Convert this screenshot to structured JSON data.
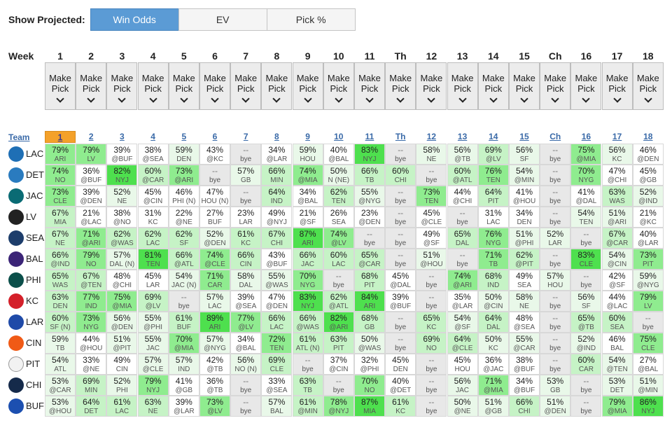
{
  "toolbar": {
    "label": "Show Projected:",
    "buttons": [
      {
        "label": "Win Odds",
        "active": true
      },
      {
        "label": "EV",
        "active": false
      },
      {
        "label": "Pick %",
        "active": false
      }
    ]
  },
  "week_label": "Week",
  "weeks": [
    "1",
    "2",
    "3",
    "4",
    "5",
    "6",
    "7",
    "8",
    "9",
    "10",
    "11",
    "Th",
    "12",
    "13",
    "14",
    "15",
    "Ch",
    "16",
    "17",
    "18"
  ],
  "make_pick": {
    "line1": "Make",
    "line2": "Pick"
  },
  "team_header": "Team",
  "selected_week_index": 0,
  "teams": [
    {
      "abbr": "LAC",
      "logo": "bolt-logo-icon",
      "color": "#1f6fb5",
      "cells": [
        [
          "79%",
          "ARI"
        ],
        [
          "79%",
          "LV"
        ],
        [
          "39%",
          "@BUF"
        ],
        [
          "38%",
          "@SEA"
        ],
        [
          "59%",
          "DEN"
        ],
        [
          "43%",
          "@KC"
        ],
        [
          "--",
          "bye"
        ],
        [
          "34%",
          "@LAR"
        ],
        [
          "59%",
          "HOU"
        ],
        [
          "40%",
          "@BAL"
        ],
        [
          "83%",
          "NYJ"
        ],
        [
          "--",
          "bye"
        ],
        [
          "58%",
          "NE"
        ],
        [
          "56%",
          "@TB"
        ],
        [
          "69%",
          "@LV"
        ],
        [
          "56%",
          "SF"
        ],
        [
          "--",
          "bye"
        ],
        [
          "75%",
          "@MIA"
        ],
        [
          "56%",
          "KC"
        ],
        [
          "46%",
          "@DEN"
        ]
      ]
    },
    {
      "abbr": "DET",
      "logo": "lion-logo-icon",
      "color": "#2a7bbf",
      "cells": [
        [
          "74%",
          "NO"
        ],
        [
          "36%",
          "@BUF"
        ],
        [
          "82%",
          "NYJ"
        ],
        [
          "60%",
          "@CAR"
        ],
        [
          "73%",
          "@ARI"
        ],
        [
          "--",
          "bye"
        ],
        [
          "57%",
          "GB"
        ],
        [
          "66%",
          "MIN"
        ],
        [
          "74%",
          "@MIA"
        ],
        [
          "50%",
          "N (NE)"
        ],
        [
          "66%",
          "TB"
        ],
        [
          "60%",
          "CHI"
        ],
        [
          "--",
          "bye"
        ],
        [
          "60%",
          "@ATL"
        ],
        [
          "76%",
          "TEN"
        ],
        [
          "54%",
          "@MIN"
        ],
        [
          "--",
          "bye"
        ],
        [
          "70%",
          "NYG"
        ],
        [
          "47%",
          "@CHI"
        ],
        [
          "45%",
          "@GB"
        ]
      ]
    },
    {
      "abbr": "JAC",
      "logo": "jaguar-logo-icon",
      "color": "#0a6b74",
      "cells": [
        [
          "73%",
          "CLE"
        ],
        [
          "39%",
          "@DEN"
        ],
        [
          "52%",
          "NE"
        ],
        [
          "45%",
          "@CIN"
        ],
        [
          "46%",
          "PHI (N)"
        ],
        [
          "47%",
          "HOU (N)"
        ],
        [
          "--",
          "bye"
        ],
        [
          "64%",
          "IND"
        ],
        [
          "34%",
          "@BAL"
        ],
        [
          "62%",
          "TEN"
        ],
        [
          "55%",
          "@NYG"
        ],
        [
          "--",
          "bye"
        ],
        [
          "73%",
          "TEN"
        ],
        [
          "44%",
          "@CHI"
        ],
        [
          "64%",
          "PIT"
        ],
        [
          "41%",
          "@HOU"
        ],
        [
          "--",
          "bye"
        ],
        [
          "41%",
          "@DAL"
        ],
        [
          "63%",
          "WAS"
        ],
        [
          "52%",
          "@IND"
        ]
      ]
    },
    {
      "abbr": "LV",
      "logo": "shield-logo-icon",
      "color": "#222222",
      "cells": [
        [
          "67%",
          "MIA"
        ],
        [
          "21%",
          "@LAC"
        ],
        [
          "38%",
          "@NO"
        ],
        [
          "31%",
          "KC"
        ],
        [
          "22%",
          "@NE"
        ],
        [
          "27%",
          "BUF"
        ],
        [
          "23%",
          "LAR"
        ],
        [
          "49%",
          "@NYJ"
        ],
        [
          "21%",
          "@SF"
        ],
        [
          "26%",
          "SEA"
        ],
        [
          "23%",
          "@DEN"
        ],
        [
          "--",
          "bye"
        ],
        [
          "45%",
          "@CLE"
        ],
        [
          "--",
          "bye"
        ],
        [
          "31%",
          "LAC"
        ],
        [
          "34%",
          "DEN"
        ],
        [
          "--",
          "bye"
        ],
        [
          "54%",
          "TEN"
        ],
        [
          "51%",
          "@ARI"
        ],
        [
          "21%",
          "@KC"
        ]
      ]
    },
    {
      "abbr": "SEA",
      "logo": "hawk-logo-icon",
      "color": "#1d3d6b",
      "cells": [
        [
          "67%",
          "NE"
        ],
        [
          "71%",
          "@ARI"
        ],
        [
          "62%",
          "@WAS"
        ],
        [
          "62%",
          "LAC"
        ],
        [
          "62%",
          "SF"
        ],
        [
          "52%",
          "@DEN"
        ],
        [
          "61%",
          "KC"
        ],
        [
          "67%",
          "CHI"
        ],
        [
          "87%",
          "ARI"
        ],
        [
          "74%",
          "@LV"
        ],
        [
          "--",
          "bye"
        ],
        [
          "--",
          "bye"
        ],
        [
          "49%",
          "@SF"
        ],
        [
          "65%",
          "DAL"
        ],
        [
          "76%",
          "NYG"
        ],
        [
          "51%",
          "@PHI"
        ],
        [
          "52%",
          "LAR"
        ],
        [
          "--",
          "bye"
        ],
        [
          "67%",
          "@CAR"
        ],
        [
          "40%",
          "@LAR"
        ]
      ]
    },
    {
      "abbr": "BAL",
      "logo": "raven-logo-icon",
      "color": "#3b2477",
      "cells": [
        [
          "66%",
          "@IND"
        ],
        [
          "79%",
          "NO"
        ],
        [
          "57%",
          "DAL (N)"
        ],
        [
          "81%",
          "TEN"
        ],
        [
          "66%",
          "@ATL"
        ],
        [
          "74%",
          "@CLE"
        ],
        [
          "66%",
          "CIN"
        ],
        [
          "43%",
          "@BUF"
        ],
        [
          "66%",
          "JAC"
        ],
        [
          "60%",
          "LAC"
        ],
        [
          "65%",
          "@CAR"
        ],
        [
          "--",
          "bye"
        ],
        [
          "51%",
          "@HOU"
        ],
        [
          "--",
          "bye"
        ],
        [
          "71%",
          "TB"
        ],
        [
          "62%",
          "@PIT"
        ],
        [
          "--",
          "bye"
        ],
        [
          "83%",
          "CLE"
        ],
        [
          "54%",
          "@CIN"
        ],
        [
          "73%",
          "PIT"
        ]
      ]
    },
    {
      "abbr": "PHI",
      "logo": "eagle-logo-icon",
      "color": "#0b4f4a",
      "cells": [
        [
          "65%",
          "WAS"
        ],
        [
          "67%",
          "@TEN"
        ],
        [
          "48%",
          "@CHI"
        ],
        [
          "45%",
          "LAR"
        ],
        [
          "54%",
          "JAC (N)"
        ],
        [
          "71%",
          "CAR"
        ],
        [
          "58%",
          "DAL"
        ],
        [
          "55%",
          "@WAS"
        ],
        [
          "70%",
          "NYG"
        ],
        [
          "--",
          "bye"
        ],
        [
          "68%",
          "PIT"
        ],
        [
          "45%",
          "@DAL"
        ],
        [
          "--",
          "bye"
        ],
        [
          "74%",
          "@ARI"
        ],
        [
          "68%",
          "IND"
        ],
        [
          "49%",
          "SEA"
        ],
        [
          "57%",
          "HOU"
        ],
        [
          "--",
          "bye"
        ],
        [
          "42%",
          "@SF"
        ],
        [
          "59%",
          "@NYG"
        ]
      ]
    },
    {
      "abbr": "KC",
      "logo": "arrowhead-logo-icon",
      "color": "#d4202a",
      "cells": [
        [
          "63%",
          "DEN"
        ],
        [
          "77%",
          "IND"
        ],
        [
          "75%",
          "@MIA"
        ],
        [
          "69%",
          "@LV"
        ],
        [
          "--",
          "bye"
        ],
        [
          "57%",
          "LAC"
        ],
        [
          "39%",
          "@SEA"
        ],
        [
          "47%",
          "@DEN"
        ],
        [
          "83%",
          "NYJ"
        ],
        [
          "62%",
          "@ATL"
        ],
        [
          "84%",
          "ARI"
        ],
        [
          "39%",
          "@BUF"
        ],
        [
          "--",
          "bye"
        ],
        [
          "35%",
          "@LAR"
        ],
        [
          "50%",
          "@CIN"
        ],
        [
          "58%",
          "NE"
        ],
        [
          "--",
          "bye"
        ],
        [
          "56%",
          "SF"
        ],
        [
          "44%",
          "@LAC"
        ],
        [
          "79%",
          "LV"
        ]
      ]
    },
    {
      "abbr": "LAR",
      "logo": "ram-logo-icon",
      "color": "#1f4aa8",
      "cells": [
        [
          "60%",
          "SF (N)"
        ],
        [
          "73%",
          "NYG"
        ],
        [
          "56%",
          "@DEN"
        ],
        [
          "55%",
          "@PHI"
        ],
        [
          "61%",
          "BUF"
        ],
        [
          "89%",
          "ARI"
        ],
        [
          "77%",
          "@LV"
        ],
        [
          "66%",
          "LAC"
        ],
        [
          "66%",
          "@WAS"
        ],
        [
          "82%",
          "@ARI"
        ],
        [
          "68%",
          "GB"
        ],
        [
          "--",
          "bye"
        ],
        [
          "65%",
          "KC"
        ],
        [
          "54%",
          "@SF"
        ],
        [
          "64%",
          "DAL"
        ],
        [
          "48%",
          "@SEA"
        ],
        [
          "--",
          "bye"
        ],
        [
          "65%",
          "@TB"
        ],
        [
          "60%",
          "SEA"
        ],
        [
          "--",
          "bye"
        ]
      ]
    },
    {
      "abbr": "CIN",
      "logo": "tiger-logo-icon",
      "color": "#f05a16",
      "cells": [
        [
          "59%",
          "TB"
        ],
        [
          "44%",
          "@HOU"
        ],
        [
          "51%",
          "@PIT"
        ],
        [
          "55%",
          "JAC"
        ],
        [
          "70%",
          "@MIA"
        ],
        [
          "57%",
          "@NYG"
        ],
        [
          "34%",
          "@BAL"
        ],
        [
          "72%",
          "TEN"
        ],
        [
          "61%",
          "ATL (N)"
        ],
        [
          "63%",
          "PIT"
        ],
        [
          "50%",
          "@WAS"
        ],
        [
          "--",
          "bye"
        ],
        [
          "69%",
          "NO"
        ],
        [
          "64%",
          "@CLE"
        ],
        [
          "50%",
          "KC"
        ],
        [
          "55%",
          "@CAR"
        ],
        [
          "--",
          "bye"
        ],
        [
          "52%",
          "@IND"
        ],
        [
          "46%",
          "BAL"
        ],
        [
          "75%",
          "CLE"
        ]
      ]
    },
    {
      "abbr": "PIT",
      "logo": "steel-logo-icon",
      "color": "#f2f2f2",
      "cells": [
        [
          "54%",
          "ATL"
        ],
        [
          "33%",
          "@NE"
        ],
        [
          "49%",
          "CIN"
        ],
        [
          "57%",
          "@CLE"
        ],
        [
          "57%",
          "IND"
        ],
        [
          "42%",
          "@TB"
        ],
        [
          "56%",
          "NO (N)"
        ],
        [
          "69%",
          "CLE"
        ],
        [
          "--",
          "bye"
        ],
        [
          "37%",
          "@CIN"
        ],
        [
          "32%",
          "@PHI"
        ],
        [
          "45%",
          "DEN"
        ],
        [
          "--",
          "bye"
        ],
        [
          "45%",
          "HOU"
        ],
        [
          "36%",
          "@JAC"
        ],
        [
          "38%",
          "@BUF"
        ],
        [
          "--",
          "bye"
        ],
        [
          "60%",
          "CAR"
        ],
        [
          "54%",
          "@TEN"
        ],
        [
          "27%",
          "@BAL"
        ]
      ]
    },
    {
      "abbr": "CHI",
      "logo": "bear-logo-icon",
      "color": "#152a4a",
      "cells": [
        [
          "53%",
          "@CAR"
        ],
        [
          "69%",
          "MIN"
        ],
        [
          "52%",
          "PHI"
        ],
        [
          "79%",
          "NYJ"
        ],
        [
          "41%",
          "@GB"
        ],
        [
          "36%",
          "@TB"
        ],
        [
          "--",
          "bye"
        ],
        [
          "33%",
          "@SEA"
        ],
        [
          "63%",
          "TB"
        ],
        [
          "--",
          "bye"
        ],
        [
          "70%",
          "NO"
        ],
        [
          "40%",
          "@DET"
        ],
        [
          "--",
          "bye"
        ],
        [
          "56%",
          "JAC"
        ],
        [
          "71%",
          "@MIA"
        ],
        [
          "34%",
          "@BUF"
        ],
        [
          "53%",
          "GB"
        ],
        [
          "--",
          "bye"
        ],
        [
          "53%",
          "DET"
        ],
        [
          "51%",
          "@MIN"
        ]
      ]
    },
    {
      "abbr": "BUF",
      "logo": "buffalo-logo-icon",
      "color": "#1c4fb0",
      "cells": [
        [
          "53%",
          "@HOU"
        ],
        [
          "64%",
          "DET"
        ],
        [
          "61%",
          "LAC"
        ],
        [
          "63%",
          "NE"
        ],
        [
          "39%",
          "@LAR"
        ],
        [
          "73%",
          "@LV"
        ],
        [
          "--",
          "bye"
        ],
        [
          "57%",
          "BAL"
        ],
        [
          "61%",
          "@MIN"
        ],
        [
          "78%",
          "@NYJ"
        ],
        [
          "87%",
          "MIA"
        ],
        [
          "61%",
          "KC"
        ],
        [
          "--",
          "bye"
        ],
        [
          "50%",
          "@NE"
        ],
        [
          "51%",
          "@GB"
        ],
        [
          "66%",
          "CHI"
        ],
        [
          "51%",
          "@DEN"
        ],
        [
          "--",
          "bye"
        ],
        [
          "79%",
          "@MIA"
        ],
        [
          "86%",
          "NYJ"
        ]
      ]
    }
  ]
}
